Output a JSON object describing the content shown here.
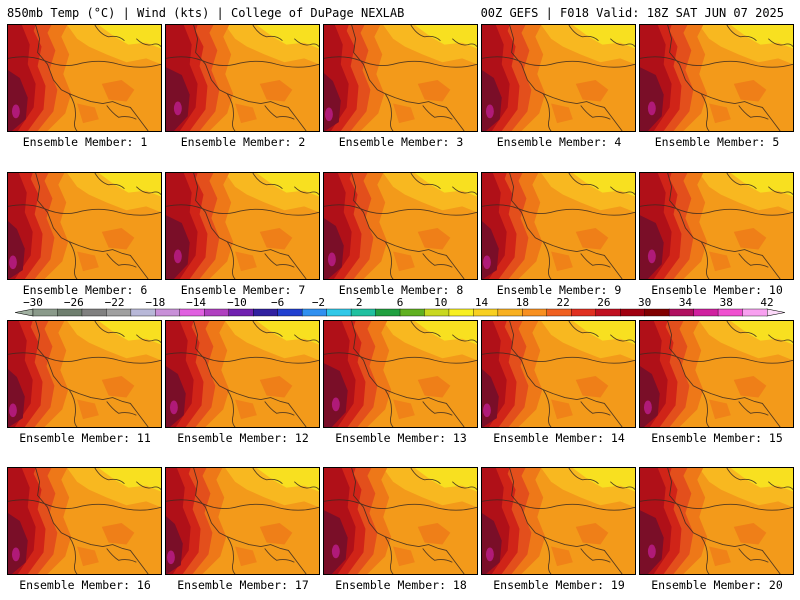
{
  "header": {
    "left_title": "850mb Temp (°C) | Wind (kts) | College of DuPage NEXLAB",
    "right_title": "00Z GEFS | F018 Valid: 18Z SAT JUN 07 2025"
  },
  "panels": [
    {
      "label": "Ensemble Member: 1",
      "variant": 0
    },
    {
      "label": "Ensemble Member: 2",
      "variant": 1
    },
    {
      "label": "Ensemble Member: 3",
      "variant": 2
    },
    {
      "label": "Ensemble Member: 4",
      "variant": 0
    },
    {
      "label": "Ensemble Member: 5",
      "variant": 1
    },
    {
      "label": "Ensemble Member: 6",
      "variant": 2
    },
    {
      "label": "Ensemble Member: 7",
      "variant": 1
    },
    {
      "label": "Ensemble Member: 8",
      "variant": 0
    },
    {
      "label": "Ensemble Member: 9",
      "variant": 2
    },
    {
      "label": "Ensemble Member: 10",
      "variant": 1
    },
    {
      "label": "Ensemble Member: 11",
      "variant": 2
    },
    {
      "label": "Ensemble Member: 12",
      "variant": 0
    },
    {
      "label": "Ensemble Member: 13",
      "variant": 1
    },
    {
      "label": "Ensemble Member: 14",
      "variant": 2
    },
    {
      "label": "Ensemble Member: 15",
      "variant": 0
    },
    {
      "label": "Ensemble Member: 16",
      "variant": 0
    },
    {
      "label": "Ensemble Member: 17",
      "variant": 2
    },
    {
      "label": "Ensemble Member: 18",
      "variant": 1
    },
    {
      "label": "Ensemble Member: 19",
      "variant": 0
    },
    {
      "label": "Ensemble Member: 20",
      "variant": 1
    }
  ],
  "colorbar": {
    "labels": [
      "−30",
      "−26",
      "−22",
      "−18",
      "−14",
      "−10",
      "−6",
      "−2",
      "2",
      "6",
      "10",
      "14",
      "18",
      "22",
      "26",
      "30",
      "34",
      "38",
      "42"
    ],
    "colors": [
      "#8a9a8a",
      "#6f7f6f",
      "#808080",
      "#a0a0a0",
      "#b8b8d8",
      "#c890d8",
      "#e060e0",
      "#b040c0",
      "#7020b0",
      "#3020a0",
      "#2040d0",
      "#3090f0",
      "#30c8e8",
      "#20c0a0",
      "#20a040",
      "#60b020",
      "#c8d820",
      "#f8f020",
      "#f8d020",
      "#f8b020",
      "#f89020",
      "#f06020",
      "#e03020",
      "#c01020",
      "#a00010",
      "#800000",
      "#b01060",
      "#d020a0",
      "#f050d0",
      "#f8a0f0"
    ]
  },
  "temperature_colors": {
    "yellow": "#f8e020",
    "light_orange": "#f8b820",
    "orange": "#f39a1a",
    "dark_orange": "#ee7818",
    "red_orange": "#e34f1c",
    "red": "#d02418",
    "dark_red": "#b01018",
    "maroon": "#7a0e28",
    "magenta": "#b01a78"
  }
}
